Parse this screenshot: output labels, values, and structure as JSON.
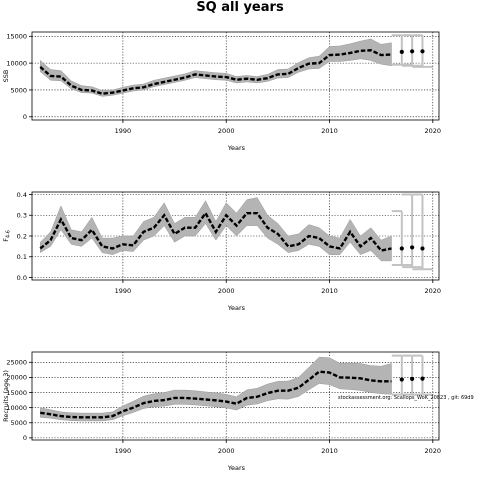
{
  "figure": {
    "title": "SQ all years",
    "note": "stockassessment.org: Scallops_WoK_20823 , git: 69d9"
  },
  "chart_data": [
    {
      "type": "line",
      "ylabel": "SSB",
      "xlabel": "Years",
      "xlim": [
        1981.2,
        2020.6
      ],
      "ylim": [
        -600,
        15800
      ],
      "xticks": [
        1990,
        2000,
        2010,
        2020
      ],
      "yticks": [
        0,
        5000,
        10000,
        15000
      ],
      "grid": "dotted",
      "series": [
        {
          "role": "estimate",
          "x": [
            1982,
            1983,
            1984,
            1985,
            1986,
            1987,
            1988,
            1989,
            1990,
            1991,
            1992,
            1993,
            1994,
            1995,
            1996,
            1997,
            1998,
            1999,
            2000,
            2001,
            2002,
            2003,
            2004,
            2005,
            2006,
            2007,
            2008,
            2009,
            2010,
            2011,
            2012,
            2013,
            2014,
            2015,
            2016
          ],
          "values": [
            9300,
            7600,
            7500,
            5800,
            5000,
            4900,
            4300,
            4500,
            4900,
            5300,
            5500,
            6100,
            6500,
            6900,
            7300,
            7900,
            7700,
            7500,
            7400,
            6900,
            7100,
            6900,
            7200,
            7900,
            8000,
            9100,
            9900,
            10000,
            11500,
            11600,
            11900,
            12300,
            12400,
            11500,
            11600
          ],
          "lower": [
            8400,
            6800,
            6700,
            5200,
            4500,
            4400,
            3800,
            4000,
            4400,
            4800,
            5000,
            5600,
            6000,
            6400,
            6800,
            7300,
            7100,
            6900,
            6800,
            6300,
            6500,
            6300,
            6600,
            7200,
            7300,
            8300,
            8900,
            9000,
            10300,
            10300,
            10500,
            10800,
            10500,
            9800,
            9500
          ],
          "upper": [
            10500,
            8800,
            8600,
            6700,
            5800,
            5600,
            4900,
            5000,
            5500,
            5900,
            6100,
            6800,
            7200,
            7600,
            8000,
            8600,
            8400,
            8200,
            8100,
            7500,
            7700,
            7500,
            7900,
            8800,
            8900,
            10100,
            11000,
            11300,
            13100,
            13200,
            13600,
            14100,
            14500,
            13500,
            13800
          ]
        },
        {
          "role": "forecast",
          "x": [
            2017,
            2018,
            2019
          ],
          "values": [
            12100,
            12200,
            12200
          ],
          "lower": [
            9700,
            9500,
            9300
          ],
          "upper": [
            15200,
            15200,
            15200
          ]
        }
      ]
    },
    {
      "type": "line",
      "ylabel": "F",
      "ylabel_sub": "4-6",
      "xlabel": "Years",
      "xlim": [
        1981.2,
        2020.6
      ],
      "ylim": [
        -0.012,
        0.412
      ],
      "xticks": [
        1990,
        2000,
        2010,
        2020
      ],
      "yticks": [
        0.0,
        0.1,
        0.2,
        0.3,
        0.4
      ],
      "grid": "dotted",
      "series": [
        {
          "role": "estimate",
          "x": [
            1982,
            1983,
            1984,
            1985,
            1986,
            1987,
            1988,
            1989,
            1990,
            1991,
            1992,
            1993,
            1994,
            1995,
            1996,
            1997,
            1998,
            1999,
            2000,
            2001,
            2002,
            2003,
            2004,
            2005,
            2006,
            2007,
            2008,
            2009,
            2010,
            2011,
            2012,
            2013,
            2014,
            2015,
            2016
          ],
          "values": [
            0.14,
            0.18,
            0.28,
            0.19,
            0.18,
            0.23,
            0.15,
            0.14,
            0.16,
            0.155,
            0.22,
            0.24,
            0.3,
            0.21,
            0.24,
            0.24,
            0.31,
            0.22,
            0.3,
            0.25,
            0.31,
            0.31,
            0.24,
            0.21,
            0.15,
            0.16,
            0.2,
            0.19,
            0.15,
            0.14,
            0.22,
            0.15,
            0.19,
            0.13,
            0.14
          ],
          "lower": [
            0.12,
            0.15,
            0.23,
            0.16,
            0.15,
            0.19,
            0.12,
            0.11,
            0.13,
            0.125,
            0.18,
            0.2,
            0.25,
            0.17,
            0.2,
            0.2,
            0.26,
            0.18,
            0.25,
            0.2,
            0.25,
            0.25,
            0.19,
            0.16,
            0.12,
            0.13,
            0.16,
            0.15,
            0.11,
            0.11,
            0.17,
            0.11,
            0.13,
            0.08,
            0.08
          ],
          "upper": [
            0.17,
            0.22,
            0.345,
            0.23,
            0.22,
            0.29,
            0.19,
            0.19,
            0.2,
            0.2,
            0.27,
            0.29,
            0.36,
            0.26,
            0.29,
            0.29,
            0.37,
            0.27,
            0.36,
            0.31,
            0.375,
            0.385,
            0.3,
            0.26,
            0.2,
            0.21,
            0.255,
            0.24,
            0.2,
            0.19,
            0.28,
            0.2,
            0.24,
            0.18,
            0.2
          ]
        },
        {
          "role": "forecast",
          "x": [
            2017,
            2018,
            2019
          ],
          "values": [
            0.14,
            0.145,
            0.14
          ],
          "lower": [
            0.06,
            0.05,
            0.04
          ],
          "upper": [
            0.32,
            0.4,
            0.4
          ]
        }
      ]
    },
    {
      "type": "line",
      "ylabel": "Recruits (age 3)",
      "xlabel": "Years",
      "xlim": [
        1981.2,
        2020.6
      ],
      "ylim": [
        -700,
        28400
      ],
      "xticks": [
        1990,
        2000,
        2010,
        2020
      ],
      "yticks": [
        0,
        5000,
        10000,
        15000,
        20000,
        25000
      ],
      "grid": "dotted",
      "series": [
        {
          "role": "estimate",
          "x": [
            1982,
            1983,
            1984,
            1985,
            1986,
            1987,
            1988,
            1989,
            1990,
            1991,
            1992,
            1993,
            1994,
            1995,
            1996,
            1997,
            1998,
            1999,
            2000,
            2001,
            2002,
            2003,
            2004,
            2005,
            2006,
            2007,
            2008,
            2009,
            2010,
            2011,
            2012,
            2013,
            2014,
            2015,
            2016
          ],
          "values": [
            8300,
            7800,
            7200,
            6900,
            6800,
            6800,
            6800,
            7200,
            8800,
            10000,
            11500,
            12200,
            12500,
            13200,
            13200,
            13000,
            12700,
            12400,
            12000,
            11300,
            13200,
            13600,
            14800,
            15600,
            15600,
            16600,
            19200,
            21900,
            21600,
            20000,
            19900,
            19700,
            19000,
            18700,
            18700
          ],
          "lower": [
            6800,
            6500,
            6000,
            5700,
            5600,
            5600,
            5600,
            6000,
            7300,
            8400,
            9700,
            10300,
            10500,
            11100,
            11100,
            10900,
            10600,
            10300,
            9900,
            9200,
            10800,
            11200,
            12300,
            12900,
            12800,
            13700,
            15900,
            18000,
            17600,
            16200,
            16000,
            15700,
            15000,
            14600,
            14400
          ],
          "upper": [
            10000,
            9300,
            8600,
            8300,
            8200,
            8200,
            8200,
            8600,
            10600,
            12100,
            13800,
            14600,
            15000,
            15800,
            15800,
            15600,
            15200,
            14900,
            14400,
            13600,
            15900,
            16400,
            17800,
            18700,
            18800,
            20000,
            23300,
            26700,
            26500,
            24700,
            24700,
            24600,
            23900,
            23700,
            24600
          ]
        },
        {
          "role": "forecast",
          "x": [
            2017,
            2018,
            2019
          ],
          "values": [
            19300,
            19500,
            19600
          ],
          "lower": [
            14300,
            14300,
            14300
          ],
          "upper": [
            27200,
            27200,
            27200
          ]
        }
      ]
    }
  ]
}
